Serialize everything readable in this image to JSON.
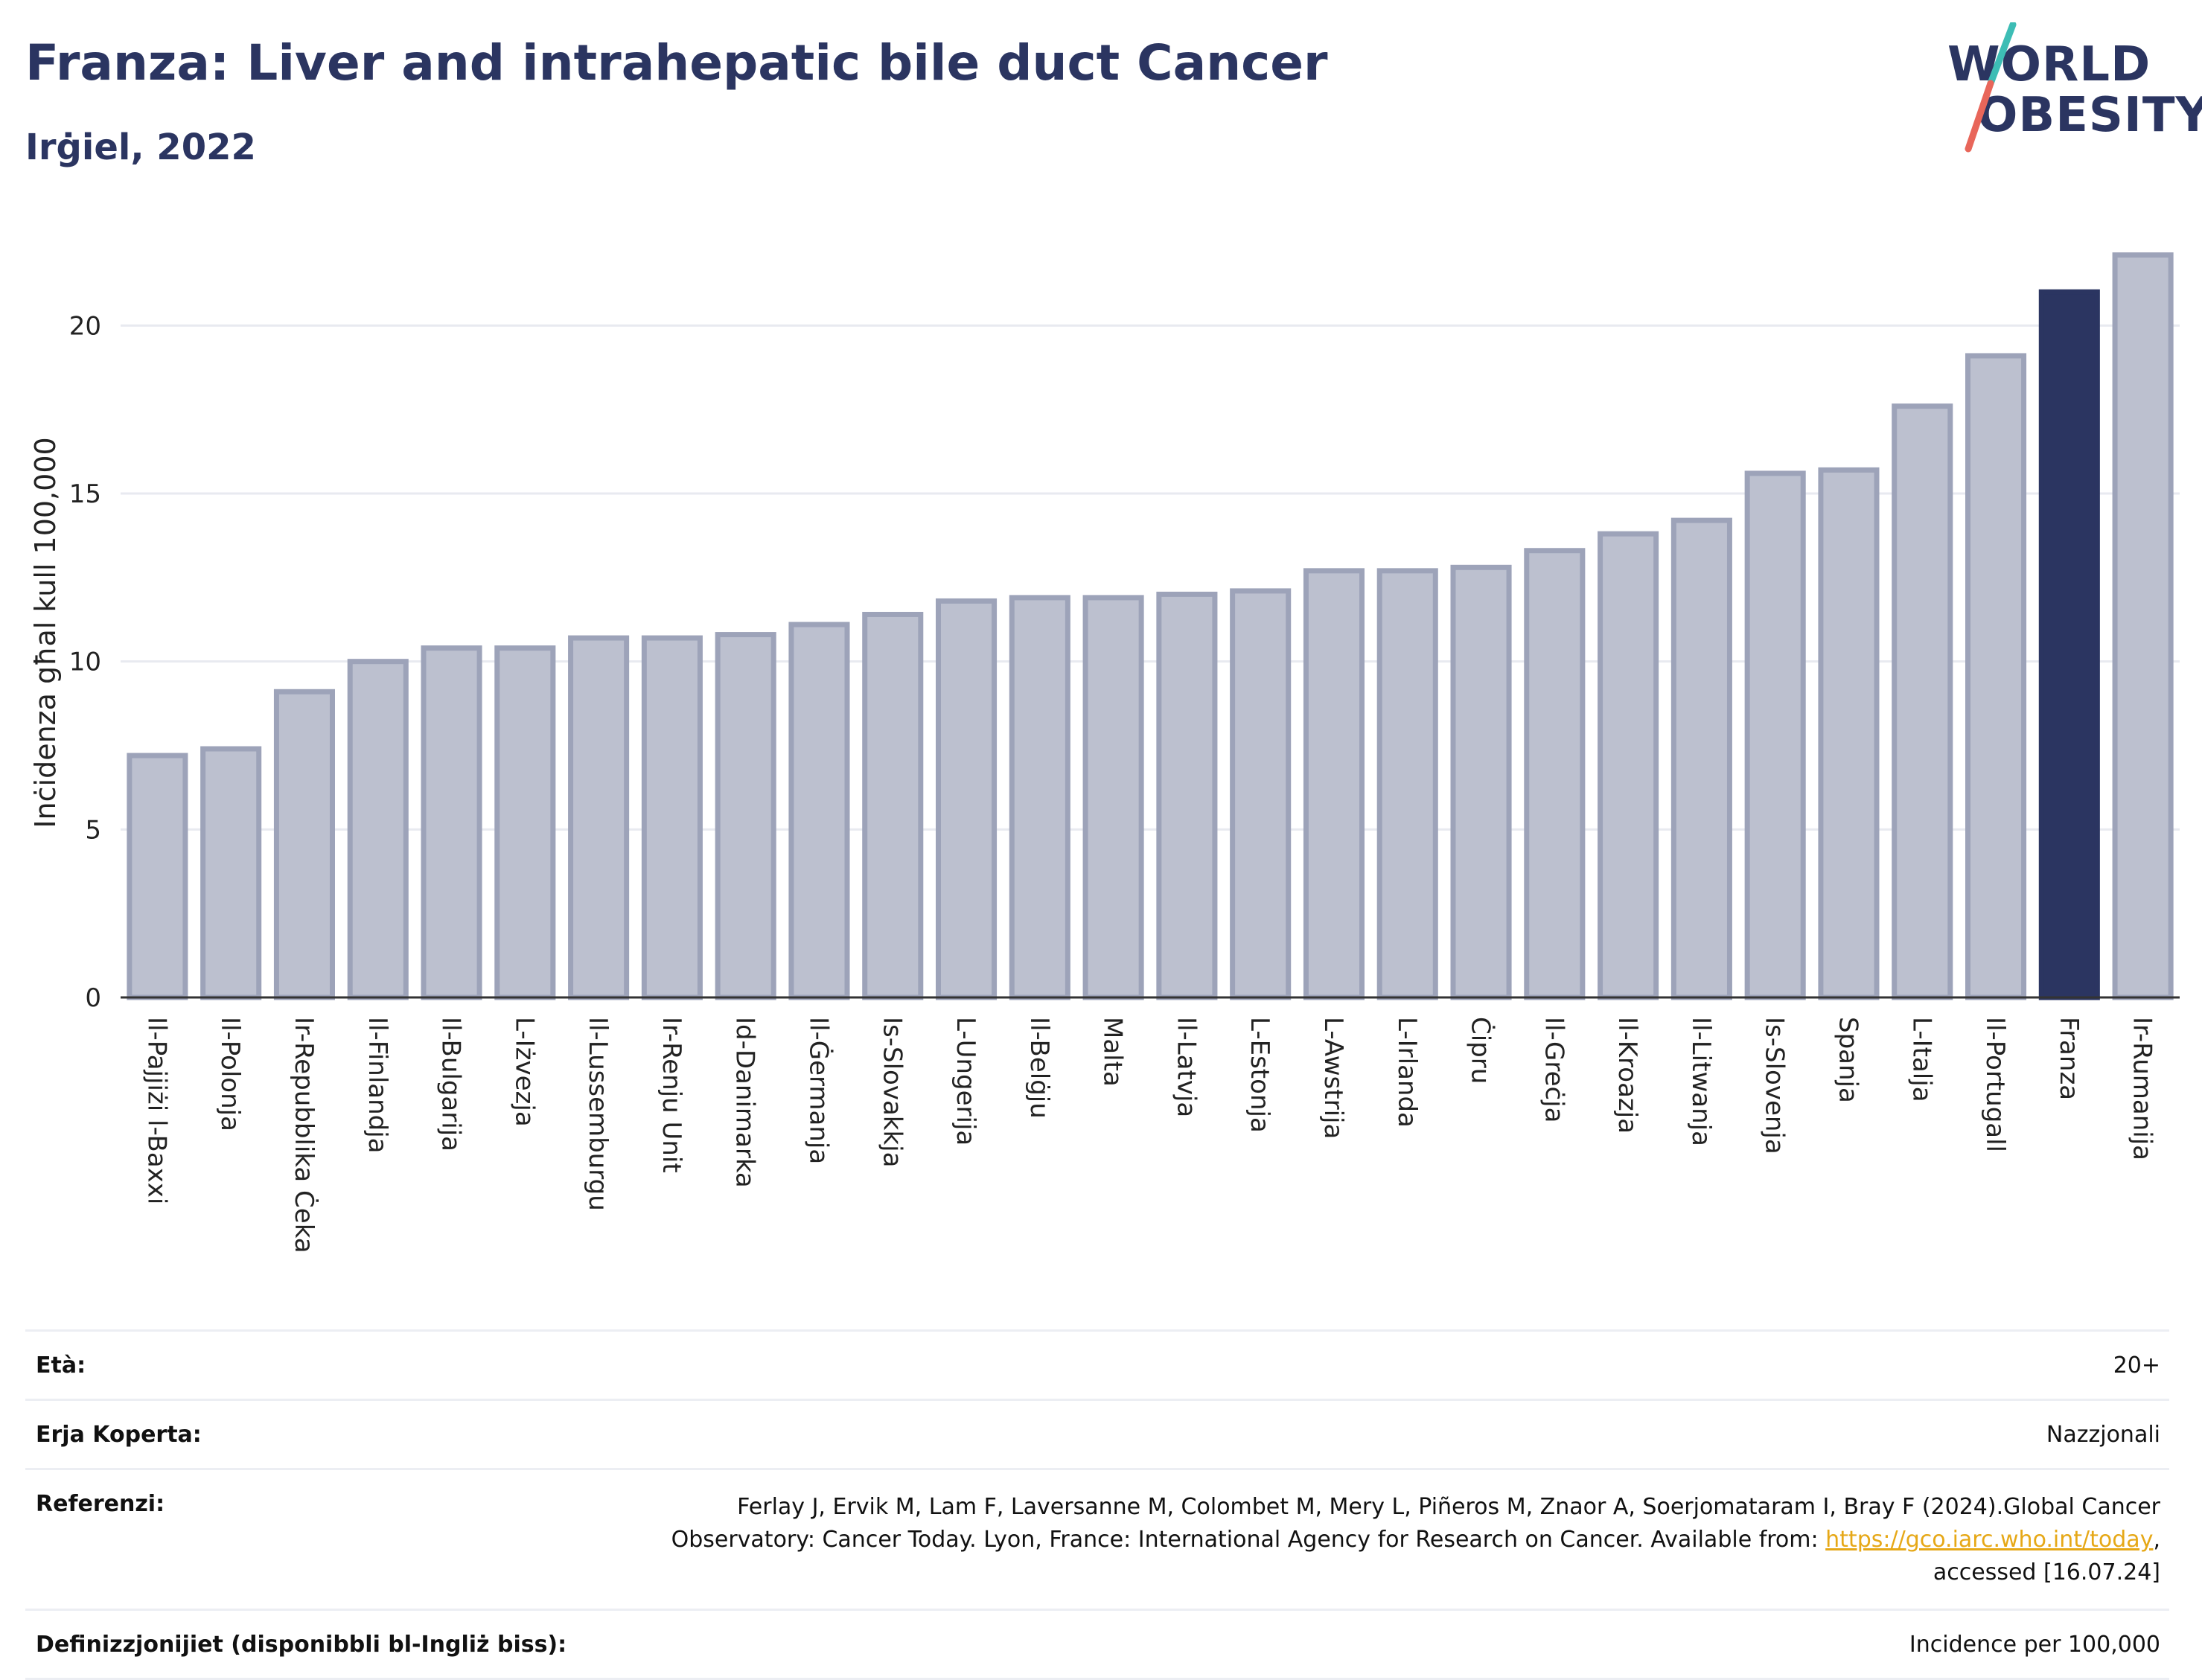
{
  "header": {
    "title": "Franza: Liver and intrahepatic bile duct Cancer",
    "subtitle": "Irġiel, 2022"
  },
  "logo": {
    "line1": "WORLD",
    "line2": "OBESITY",
    "colors": {
      "text": "#2b3561",
      "slash_top": "#3dbdb5",
      "slash_bottom": "#e8665a"
    }
  },
  "chart_data": {
    "type": "bar",
    "ylabel": "Inċidenza għal kull 100,000",
    "xlabel": "",
    "ylim": [
      0,
      22.6
    ],
    "yticks": [
      0,
      5,
      10,
      15,
      20
    ],
    "grid": true,
    "highlight": "Franza",
    "colors": {
      "bar": "#bcc0cf",
      "bar_border": "#9da3b9",
      "highlight": "#2b3561",
      "grid": "#e8eaf0",
      "axis": "#333333"
    },
    "categories": [
      "Il-Pajjiżi l-Baxxi",
      "Il-Polonja",
      "Ir-Repubblika Ċeka",
      "Il-Finlandja",
      "Il-Bulgarija",
      "L-Iżvezja",
      "Il-Lussemburgu",
      "Ir-Renju Unit",
      "Id-Danimarka",
      "Il-Ġermanja",
      "Is-Slovakkja",
      "L-Ungerija",
      "Il-Belġju",
      "Malta",
      "Il-Latvja",
      "L-Estonja",
      "L-Awstrija",
      "L-Irlanda",
      "Ċipru",
      "Il-Greċja",
      "Il-Kroazja",
      "Il-Litwanja",
      "Is-Slovenja",
      "Spanja",
      "L-Italja",
      "Il-Portugall",
      "Franza",
      "Ir-Rumanija"
    ],
    "values": [
      7.2,
      7.4,
      9.1,
      10.0,
      10.4,
      10.4,
      10.7,
      10.7,
      10.8,
      11.1,
      11.4,
      11.8,
      11.9,
      11.9,
      12.0,
      12.1,
      12.7,
      12.7,
      12.8,
      13.3,
      13.8,
      14.2,
      15.6,
      15.7,
      17.6,
      19.1,
      21.0,
      22.1
    ]
  },
  "meta": [
    {
      "label": "Età:",
      "value": "20+"
    },
    {
      "label": "Erja Koperta:",
      "value": "Nazzjonali"
    },
    {
      "label": "Referenzi:",
      "value_line1": "Ferlay J, Ervik M, Lam F, Laversanne M, Colombet M, Mery L, Piñeros M, Znaor A, Soerjomataram I, Bray F (2024).Global Cancer",
      "value_line2_pre": "Observatory: Cancer Today. Lyon, France: International Agency for Research on Cancer. Available from: ",
      "link": "https://gco.iarc.who.int/today",
      "value_line2_post": ",",
      "value_line3": "accessed [16.07.24]"
    },
    {
      "label": "Definizzjonijiet (disponibbli bl-Ingliż biss):",
      "value": "Incidence per 100,000"
    }
  ]
}
